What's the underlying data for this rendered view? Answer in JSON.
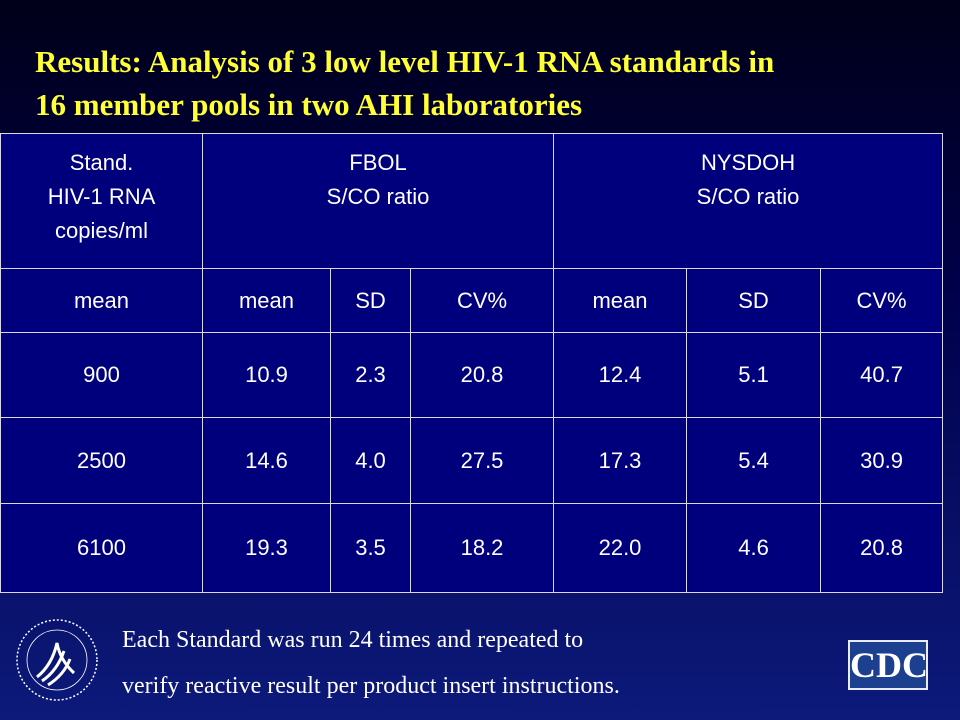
{
  "title": [
    "Results: Analysis of 3 low level HIV-1 RNA standards in",
    "16 member pools in two AHI laboratories"
  ],
  "table": {
    "standard_header": [
      "Stand.",
      "HIV-1 RNA copies/ml"
    ],
    "groups": [
      {
        "lines": [
          "FBOL",
          "S/CO ratio"
        ]
      },
      {
        "lines": [
          "NYSDOH",
          "S/CO ratio"
        ]
      }
    ],
    "subheader": [
      "mean",
      "mean",
      "SD",
      "CV%",
      "mean",
      "SD",
      "CV%"
    ],
    "rows": [
      [
        "900",
        "10.9",
        "2.3",
        "20.8",
        "12.4",
        "5.1",
        "40.7"
      ],
      [
        "2500",
        "14.6",
        "4.0",
        "27.5",
        "17.3",
        "5.4",
        "30.9"
      ],
      [
        "6100",
        "19.3",
        "3.5",
        "18.2",
        "22.0",
        "4.6",
        "20.8"
      ]
    ]
  },
  "footnote": [
    "Each Standard was run 24 times and repeated to",
    "verify reactive result per product insert instructions."
  ],
  "logo": {
    "text": "CDC"
  }
}
